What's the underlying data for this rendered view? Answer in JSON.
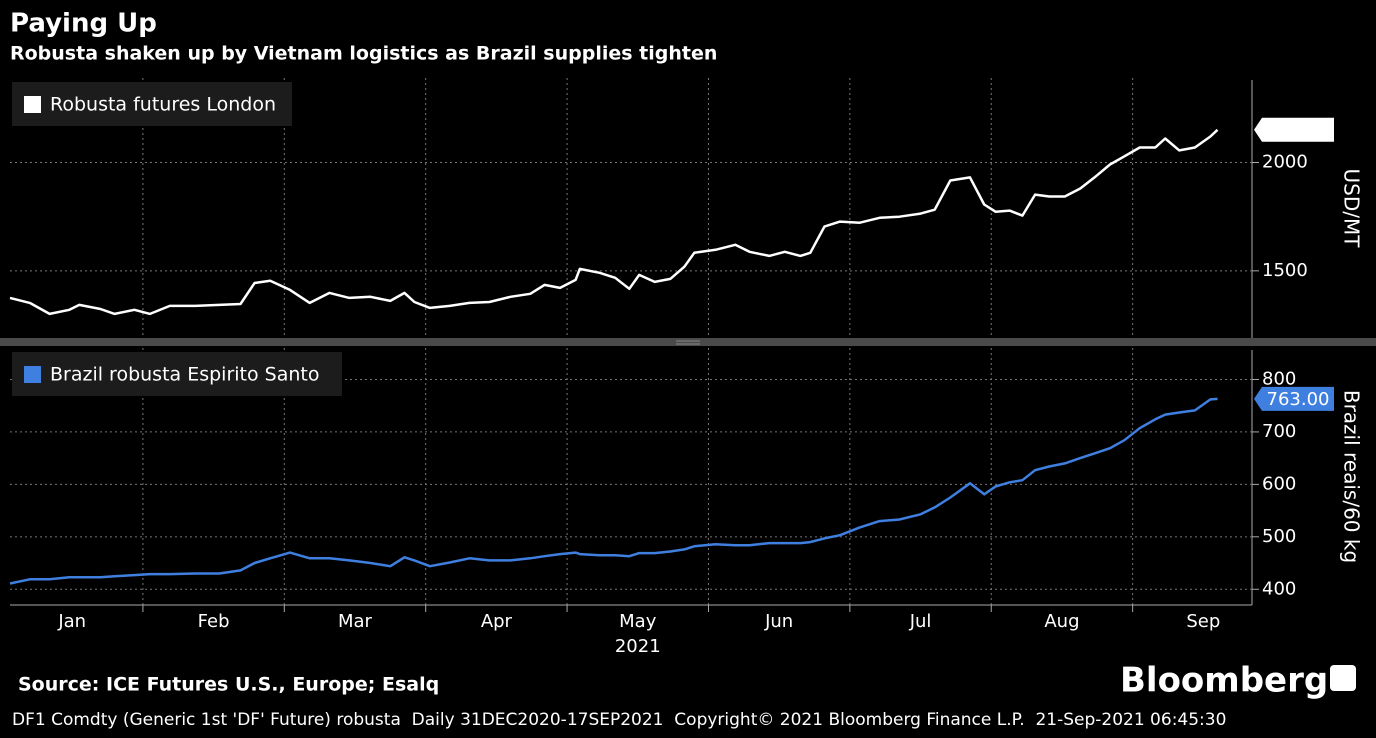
{
  "header": {
    "title": "Paying Up",
    "subtitle": "Robusta shaken up by Vietnam logistics as Brazil supplies tighten"
  },
  "chart_data": [
    {
      "type": "line",
      "grid": true,
      "legend": "upper left",
      "ylabel": "USD/MT",
      "x": [
        1.06,
        1.2,
        1.34,
        1.48,
        1.55,
        1.7,
        1.8,
        1.94,
        2.05,
        2.19,
        2.37,
        2.54,
        2.69,
        2.79,
        2.9,
        3.04,
        3.18,
        3.32,
        3.46,
        3.61,
        3.75,
        3.85,
        3.92,
        4.03,
        4.17,
        4.31,
        4.45,
        4.6,
        4.74,
        4.84,
        4.95,
        5.06,
        5.09,
        5.23,
        5.34,
        5.44,
        5.51,
        5.62,
        5.73,
        5.83,
        5.9,
        6.05,
        6.19,
        6.29,
        6.43,
        6.54,
        6.65,
        6.72,
        6.82,
        6.93,
        7.07,
        7.21,
        7.35,
        7.5,
        7.6,
        7.71,
        7.85,
        7.95,
        8.03,
        8.13,
        8.22,
        8.31,
        8.41,
        8.52,
        8.63,
        8.73,
        8.84,
        8.94,
        9.05,
        9.16,
        9.23,
        9.33,
        9.44,
        9.55,
        9.6
      ],
      "series": [
        {
          "name": "Robusta futures London",
          "color": "#ffffff",
          "values": [
            1375,
            1352,
            1301,
            1320,
            1343,
            1324,
            1301,
            1320,
            1301,
            1338,
            1338,
            1343,
            1347,
            1444,
            1454,
            1412,
            1352,
            1398,
            1375,
            1380,
            1361,
            1398,
            1356,
            1329,
            1338,
            1352,
            1356,
            1380,
            1394,
            1435,
            1421,
            1458,
            1509,
            1491,
            1468,
            1417,
            1481,
            1449,
            1463,
            1519,
            1583,
            1597,
            1620,
            1588,
            1569,
            1588,
            1569,
            1583,
            1704,
            1727,
            1722,
            1745,
            1750,
            1764,
            1782,
            1917,
            1931,
            1806,
            1773,
            1778,
            1755,
            1852,
            1843,
            1843,
            1880,
            1931,
            1991,
            2028,
            2069,
            2069,
            2111,
            2056,
            2069,
            2120,
            2151
          ]
        }
      ],
      "xlim": [
        1.06,
        9.83
      ],
      "ylim": [
        1190,
        2390
      ],
      "yticks": [
        1500,
        2000
      ]
    },
    {
      "type": "line",
      "grid": true,
      "legend": "upper left",
      "ylabel": "Brazil reais/60 kg",
      "xlabel": "2021",
      "x": [
        1.06,
        1.2,
        1.34,
        1.48,
        1.55,
        1.7,
        1.8,
        1.94,
        2.05,
        2.19,
        2.37,
        2.54,
        2.69,
        2.79,
        2.9,
        3.04,
        3.18,
        3.32,
        3.46,
        3.61,
        3.75,
        3.85,
        3.92,
        4.03,
        4.17,
        4.31,
        4.45,
        4.6,
        4.74,
        4.84,
        4.95,
        5.06,
        5.09,
        5.23,
        5.34,
        5.44,
        5.51,
        5.62,
        5.73,
        5.83,
        5.9,
        6.05,
        6.19,
        6.29,
        6.43,
        6.54,
        6.65,
        6.72,
        6.82,
        6.93,
        7.07,
        7.21,
        7.35,
        7.5,
        7.6,
        7.71,
        7.85,
        7.95,
        8.03,
        8.13,
        8.22,
        8.31,
        8.41,
        8.52,
        8.63,
        8.73,
        8.84,
        8.94,
        9.05,
        9.16,
        9.23,
        9.33,
        9.44,
        9.55,
        9.6
      ],
      "series": [
        {
          "name": "Brazil robusta Espirito Santo",
          "color": "#3f7fe0",
          "values": [
            411,
            419,
            419,
            423,
            423,
            423,
            425,
            427,
            429,
            429,
            430,
            430,
            436,
            450,
            459,
            470,
            459,
            459,
            455,
            450,
            444,
            461,
            455,
            444,
            451,
            459,
            455,
            455,
            459,
            463,
            467,
            470,
            467,
            465,
            465,
            463,
            469,
            469,
            472,
            476,
            482,
            486,
            484,
            484,
            488,
            488,
            488,
            490,
            497,
            503,
            518,
            530,
            533,
            543,
            556,
            575,
            602,
            581,
            596,
            604,
            608,
            627,
            634,
            640,
            650,
            659,
            669,
            684,
            707,
            724,
            733,
            737,
            741,
            762,
            763
          ],
          "last_label": "763.00"
        }
      ],
      "xlim": [
        1.06,
        9.83
      ],
      "ylim": [
        370,
        860
      ],
      "yticks": [
        400,
        500,
        600,
        700,
        800
      ],
      "xticks": [
        {
          "value": 1.5,
          "label": "Jan"
        },
        {
          "value": 2.5,
          "label": "Feb"
        },
        {
          "value": 3.5,
          "label": "Mar"
        },
        {
          "value": 4.5,
          "label": "Apr"
        },
        {
          "value": 5.5,
          "label": "May"
        },
        {
          "value": 6.5,
          "label": "Jun"
        },
        {
          "value": 7.5,
          "label": "Jul"
        },
        {
          "value": 8.5,
          "label": "Aug"
        },
        {
          "value": 9.5,
          "label": "Sep"
        }
      ]
    }
  ],
  "source": "Source: ICE Futures U.S., Europe; Esalq",
  "brand": "Bloomberg",
  "footer": "DF1 Comdty (Generic 1st 'DF' Future) robusta  Daily 31DEC2020-17SEP2021  Copyright© 2021 Bloomberg Finance L.P.  21-Sep-2021 06:45:30"
}
